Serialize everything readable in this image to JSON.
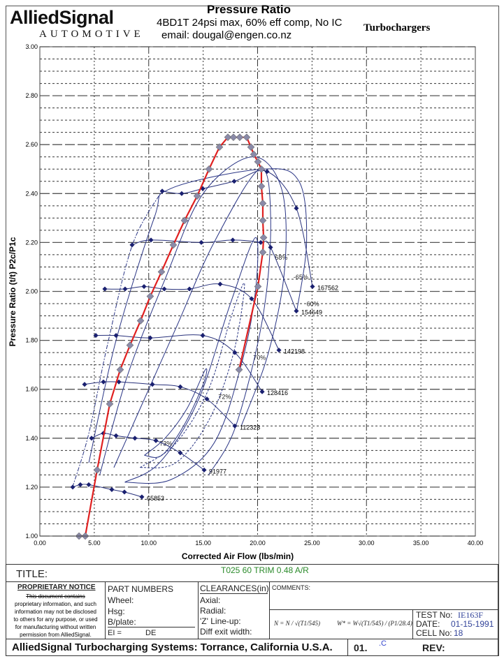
{
  "header": {
    "logo": "AlliedSignal",
    "logo_sub": "AUTOMOTIVE",
    "title": "Pressure Ratio",
    "subtitle": "4BD1T 24psi max, 60% eff comp, No IC",
    "email": "email:  dougal@engen.co.nz",
    "brand": "Turbochargers"
  },
  "chart_data": {
    "type": "line",
    "title": "Pressure Ratio",
    "xlabel": "Corrected Air Flow (lbs/min)",
    "ylabel": "Pressure Ratio (t/t) P2c/P1c",
    "xlim": [
      0,
      40
    ],
    "ylim": [
      1.0,
      3.0
    ],
    "xticks": [
      "0.00",
      "5.00",
      "10.00",
      "15.00",
      "20.00",
      "25.00",
      "30.00",
      "35.00",
      "40.00"
    ],
    "yticks": [
      "1.00",
      "1.20",
      "1.40",
      "1.60",
      "1.80",
      "2.00",
      "2.20",
      "2.40",
      "2.60",
      "2.80",
      "3.00"
    ],
    "grid": true,
    "colors": {
      "engine": "#e02020",
      "engine_marker": "#8a8aa8",
      "speed": "#27307a",
      "eff": "#2a3585"
    },
    "engine_line": {
      "name": "4BD1T operating line",
      "points": [
        [
          3.6,
          1.0
        ],
        [
          4.17,
          1.0
        ],
        [
          5.26,
          1.27
        ],
        [
          6.42,
          1.54
        ],
        [
          7.38,
          1.68
        ],
        [
          8.28,
          1.78
        ],
        [
          9.25,
          1.88
        ],
        [
          10.14,
          1.98
        ],
        [
          11.17,
          2.08
        ],
        [
          12.26,
          2.19
        ],
        [
          13.29,
          2.29
        ],
        [
          14.45,
          2.39
        ],
        [
          15.54,
          2.5
        ],
        [
          16.5,
          2.59
        ],
        [
          17.27,
          2.63
        ],
        [
          17.78,
          2.63
        ],
        [
          18.36,
          2.63
        ],
        [
          19.0,
          2.63
        ],
        [
          19.39,
          2.59
        ],
        [
          19.65,
          2.56
        ],
        [
          20.03,
          2.53
        ],
        [
          20.35,
          2.5
        ],
        [
          20.35,
          2.43
        ],
        [
          20.48,
          2.36
        ],
        [
          20.48,
          2.29
        ],
        [
          20.55,
          2.22
        ],
        [
          20.48,
          2.16
        ],
        [
          20.03,
          2.02
        ],
        [
          18.3,
          1.68
        ]
      ]
    },
    "speed_lines": [
      {
        "label": "65853",
        "points": [
          [
            3.02,
            1.2
          ],
          [
            3.72,
            1.21
          ],
          [
            4.49,
            1.21
          ],
          [
            6.61,
            1.19
          ],
          [
            7.77,
            1.18
          ],
          [
            9.37,
            1.16
          ]
        ]
      },
      {
        "label": "91977",
        "points": [
          [
            4.75,
            1.4
          ],
          [
            5.84,
            1.42
          ],
          [
            7.0,
            1.41
          ],
          [
            8.73,
            1.4
          ],
          [
            10.66,
            1.39
          ],
          [
            12.9,
            1.34
          ],
          [
            15.09,
            1.27
          ]
        ]
      },
      {
        "label": "112323",
        "points": [
          [
            4.11,
            1.62
          ],
          [
            5.84,
            1.63
          ],
          [
            7.26,
            1.63
          ],
          [
            10.34,
            1.62
          ],
          [
            12.9,
            1.61
          ],
          [
            15.35,
            1.56
          ],
          [
            17.91,
            1.45
          ]
        ]
      },
      {
        "label": "128416",
        "points": [
          [
            5.14,
            1.82
          ],
          [
            7.0,
            1.82
          ],
          [
            10.14,
            1.81
          ],
          [
            14.96,
            1.82
          ],
          [
            17.91,
            1.75
          ],
          [
            20.42,
            1.59
          ]
        ]
      },
      {
        "label": "142198",
        "points": [
          [
            5.97,
            2.01
          ],
          [
            7.83,
            2.01
          ],
          [
            9.57,
            2.02
          ],
          [
            11.43,
            2.01
          ],
          [
            13.74,
            2.01
          ],
          [
            16.56,
            2.03
          ],
          [
            19.45,
            1.97
          ],
          [
            21.96,
            1.76
          ]
        ]
      },
      {
        "label": "154649",
        "points": [
          [
            8.47,
            2.19
          ],
          [
            10.21,
            2.21
          ],
          [
            14.83,
            2.2
          ],
          [
            17.72,
            2.21
          ],
          [
            20.29,
            2.2
          ],
          [
            21.19,
            2.18
          ],
          [
            23.56,
            1.92
          ]
        ]
      },
      {
        "label": "167562",
        "points": [
          [
            11.24,
            2.41
          ],
          [
            13.03,
            2.4
          ],
          [
            14.96,
            2.42
          ],
          [
            17.85,
            2.45
          ],
          [
            20.87,
            2.49
          ],
          [
            23.56,
            2.34
          ],
          [
            25.04,
            2.02
          ]
        ]
      }
    ],
    "efficiency_contours": [
      {
        "label": "73%",
        "at": [
          11.0,
          1.37
        ],
        "points": [
          [
            9.6,
            1.33
          ],
          [
            11.5,
            1.4
          ],
          [
            13.5,
            1.52
          ],
          [
            15.2,
            1.68
          ],
          [
            15.0,
            1.62
          ],
          [
            13.2,
            1.45
          ],
          [
            11.2,
            1.33
          ],
          [
            9.6,
            1.33
          ]
        ]
      },
      {
        "label": "72%",
        "at": [
          16.4,
          1.56
        ],
        "points": [
          [
            9.2,
            1.28
          ],
          [
            12.5,
            1.38
          ],
          [
            15.5,
            1.6
          ],
          [
            17.6,
            1.9
          ],
          [
            18.8,
            2.03
          ],
          [
            17.8,
            1.75
          ],
          [
            15.6,
            1.48
          ],
          [
            12.5,
            1.3
          ],
          [
            9.2,
            1.28
          ]
        ]
      },
      {
        "label": "70%",
        "at": [
          19.6,
          1.72
        ],
        "points": [
          [
            7.8,
            1.22
          ],
          [
            11,
            1.3
          ],
          [
            14.5,
            1.55
          ],
          [
            17.5,
            1.95
          ],
          [
            19.8,
            2.22
          ],
          [
            19.8,
            2.0
          ],
          [
            18.5,
            1.7
          ],
          [
            16,
            1.38
          ],
          [
            12,
            1.23
          ],
          [
            7.8,
            1.22
          ]
        ]
      },
      {
        "label": "68%",
        "at": [
          21.6,
          2.13
        ],
        "points": [
          [
            6.8,
            1.28
          ],
          [
            9,
            1.5
          ],
          [
            12.5,
            1.85
          ],
          [
            16,
            2.2
          ],
          [
            20.2,
            2.5
          ],
          [
            21.2,
            2.3
          ],
          [
            20.5,
            1.9
          ],
          [
            18,
            1.45
          ],
          [
            15.5,
            1.25
          ]
        ]
      },
      {
        "label": "-65%",
        "at": [
          23.3,
          2.05
        ],
        "points": [
          [
            5.5,
            1.25
          ],
          [
            8,
            1.65
          ],
          [
            11.5,
            2.05
          ],
          [
            15,
            2.4
          ],
          [
            19.5,
            2.55
          ],
          [
            22.2,
            2.42
          ],
          [
            22.5,
            2.1
          ],
          [
            21,
            1.75
          ],
          [
            18.5,
            1.45
          ]
        ]
      },
      {
        "label": "60%",
        "at": [
          24.5,
          1.92
        ],
        "points": [
          [
            4.5,
            1.3
          ],
          [
            7,
            1.8
          ],
          [
            10.5,
            2.3
          ],
          [
            12,
            2.42
          ],
          [
            20.5,
            2.5
          ],
          [
            23.8,
            2.45
          ],
          [
            24.5,
            2.2
          ],
          [
            23.6,
            1.92
          ]
        ]
      }
    ]
  },
  "title_block": {
    "title_label": "TITLE:",
    "title_value": "T025 60 TRIM  0.48 A/R",
    "notice_head": "PROPRIETARY NOTICE",
    "notice_lines": [
      "This document contains",
      "proprietary information, and such",
      "information may not be disclosed",
      "to others for any purpose, or used",
      "for manufacturing without written",
      "permission from AlliedSignal."
    ],
    "part_numbers": "PART NUMBERS",
    "wheel": "Wheel:",
    "hsg": "Hsg:",
    "bplate": "B/plate:",
    "ei": "EI =",
    "de": "DE",
    "clearances": "CLEARANCES(in)",
    "axial": "Axial:",
    "radial": "Radial:",
    "zline": "'Z' Line-up:",
    "diff": "Diff exit width:",
    "comments": "COMMENTS:",
    "formula1": "N = N / √(T1/545)",
    "formula2": "W* = W√(T1/545) / (P1/28.4)",
    "test_no_label": "TEST No:",
    "test_no": "IE163F",
    "date_label": "DATE:",
    "date": "01-15-1991",
    "cell_label": "CELL No:",
    "cell": "18",
    "footer": "AlliedSignal Turbocharging Systems: Torrance, California U.S.A.",
    "sheet": "01.",
    "sheet_suffix": ".C",
    "rev": "REV:"
  }
}
